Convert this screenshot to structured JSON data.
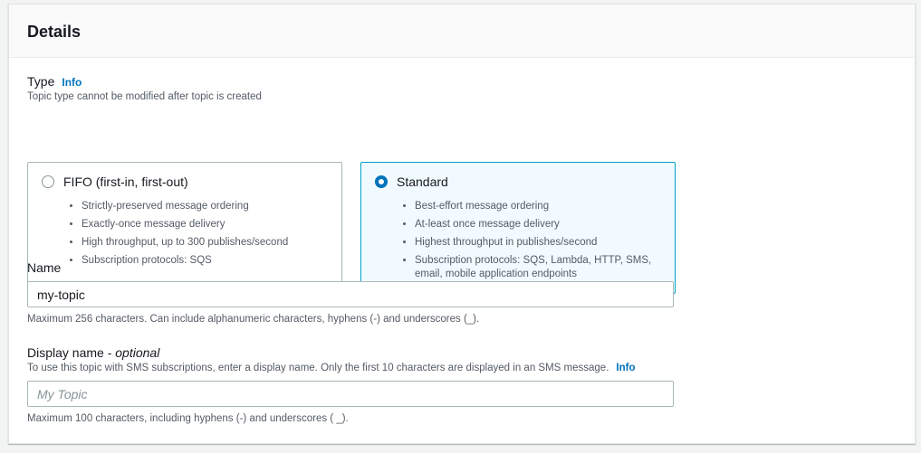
{
  "header": {
    "title": "Details"
  },
  "type": {
    "label": "Type",
    "info": "Info",
    "description": "Topic type cannot be modified after topic is created",
    "options": [
      {
        "title": "FIFO (first-in, first-out)",
        "selected": false,
        "bullets": [
          "Strictly-preserved message ordering",
          "Exactly-once message delivery",
          "High throughput, up to 300 publishes/second",
          "Subscription protocols: SQS"
        ]
      },
      {
        "title": "Standard",
        "selected": true,
        "bullets": [
          "Best-effort message ordering",
          "At-least once message delivery",
          "Highest throughput in publishes/second",
          "Subscription protocols: SQS, Lambda, HTTP, SMS, email, mobile application endpoints"
        ]
      }
    ]
  },
  "name": {
    "label": "Name",
    "value": "my-topic",
    "hint": "Maximum 256 characters. Can include alphanumeric characters, hyphens (-) and underscores (_)."
  },
  "display_name": {
    "label": "Display name - ",
    "optional": "optional",
    "description": "To use this topic with SMS subscriptions, enter a display name. Only the first 10 characters are displayed in an SMS message.",
    "info": "Info",
    "placeholder": "My Topic",
    "value": "",
    "hint": "Maximum 100 characters, including hyphens (-) and underscores ( _)."
  },
  "colors": {
    "accent": "#0073bb",
    "selected_bg": "#f1faff",
    "selected_border": "#00a1c9"
  }
}
